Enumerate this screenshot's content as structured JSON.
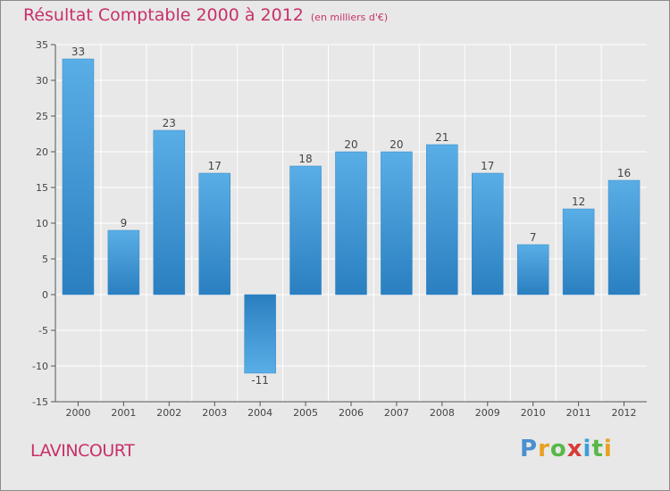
{
  "title": "Résultat Comptable 2000 à 2012",
  "subtitle": "(en milliers d'€)",
  "town": "LAVINCOURT",
  "logo": "Proxiti",
  "logo_letters": [
    {
      "ch": "P",
      "color": "#4a8fd0"
    },
    {
      "ch": "r",
      "color": "#e8a020"
    },
    {
      "ch": "o",
      "color": "#58b848"
    },
    {
      "ch": "x",
      "color": "#d83a3a"
    },
    {
      "ch": "i",
      "color": "#3aa0d8"
    },
    {
      "ch": "t",
      "color": "#58b848"
    },
    {
      "ch": "i",
      "color": "#e8a020"
    }
  ],
  "colors": {
    "accent": "#c8306a",
    "bar_top": "#5aaee6",
    "bar_bottom": "#2a7fc0",
    "grid": "#ffffff",
    "background": "#e8e8e8"
  },
  "chart_data": {
    "type": "bar",
    "title": "Résultat Comptable 2000 à 2012",
    "subtitle": "(en milliers d'€)",
    "xlabel": "",
    "ylabel": "",
    "categories": [
      "2000",
      "2001",
      "2002",
      "2003",
      "2004",
      "2005",
      "2006",
      "2007",
      "2008",
      "2009",
      "2010",
      "2011",
      "2012"
    ],
    "values": [
      33,
      9,
      23,
      17,
      -11,
      18,
      20,
      20,
      21,
      17,
      7,
      12,
      16
    ],
    "value_labels": [
      "33",
      "9",
      "23",
      "17",
      "-11",
      "18",
      "20",
      "20",
      "21",
      "17",
      "7",
      "12",
      "16"
    ],
    "ylim": [
      -15,
      35
    ],
    "yticks": [
      -15,
      -10,
      -5,
      0,
      5,
      10,
      15,
      20,
      25,
      30,
      35
    ],
    "grid": true,
    "legend": "none"
  }
}
